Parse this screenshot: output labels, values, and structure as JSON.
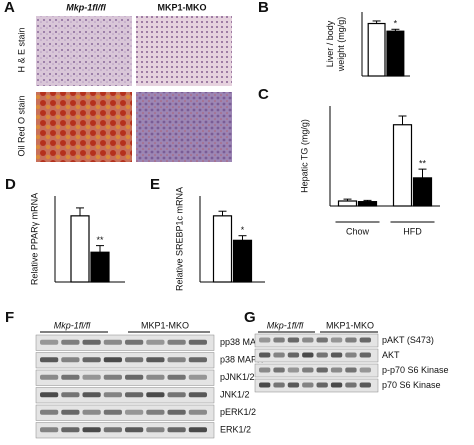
{
  "panels": {
    "A": {
      "label": "A",
      "columns": [
        "Mkp-1fl/fl",
        "MKP1-MKO"
      ],
      "rows": [
        "H & E stain",
        "Oil Red O stain"
      ]
    },
    "F": {
      "label": "F",
      "groups": [
        "Mkp-1fl/fl",
        "MKP1-MKO"
      ],
      "bands": [
        "pp38 MAPK",
        "p38 MAPK",
        "pJNK1/2",
        "JNK1/2",
        "pERK1/2",
        "ERK1/2"
      ]
    },
    "G": {
      "label": "G",
      "groups": [
        "Mkp-1fl/fl",
        "MKP1-MKO"
      ],
      "bands": [
        "pAKT (S473)",
        "AKT",
        "p-p70 S6 Kinase",
        "p70 S6 Kinase"
      ]
    }
  },
  "chart_data": [
    {
      "type": "bar",
      "label": "B",
      "ylabel": [
        "Liver / body",
        "weight (mg/g)"
      ],
      "ylim": [
        0,
        50
      ],
      "series": [
        {
          "color": "#ffffff",
          "values": [
            41
          ],
          "errors": [
            2
          ]
        },
        {
          "color": "#000000",
          "values": [
            35
          ],
          "errors": [
            1.5
          ],
          "annotations": [
            "*"
          ]
        }
      ]
    },
    {
      "type": "bar",
      "label": "C",
      "ylabel": [
        "Hepatic TG (mg/g)"
      ],
      "ylim": [
        0,
        160
      ],
      "categories": [
        "Chow",
        "HFD"
      ],
      "series": [
        {
          "color": "#ffffff",
          "values": [
            8,
            130
          ],
          "errors": [
            3,
            14
          ]
        },
        {
          "color": "#000000",
          "values": [
            7,
            45
          ],
          "errors": [
            2,
            14
          ],
          "annotations": [
            null,
            "**"
          ]
        }
      ]
    },
    {
      "type": "bar",
      "label": "D",
      "ylabel": [
        "Relative PPARγ mRNA"
      ],
      "ylim": [
        0,
        1.3
      ],
      "series": [
        {
          "color": "#ffffff",
          "values": [
            1.0
          ],
          "errors": [
            0.12
          ]
        },
        {
          "color": "#000000",
          "values": [
            0.45
          ],
          "errors": [
            0.1
          ],
          "annotations": [
            "**"
          ]
        }
      ]
    },
    {
      "type": "bar",
      "label": "E",
      "ylabel": [
        "Relative SREBP1c mRNA"
      ],
      "ylim": [
        0,
        1.3
      ],
      "series": [
        {
          "color": "#ffffff",
          "values": [
            1.0
          ],
          "errors": [
            0.07
          ]
        },
        {
          "color": "#000000",
          "values": [
            0.63
          ],
          "errors": [
            0.07
          ],
          "annotations": [
            "*"
          ]
        }
      ]
    }
  ]
}
